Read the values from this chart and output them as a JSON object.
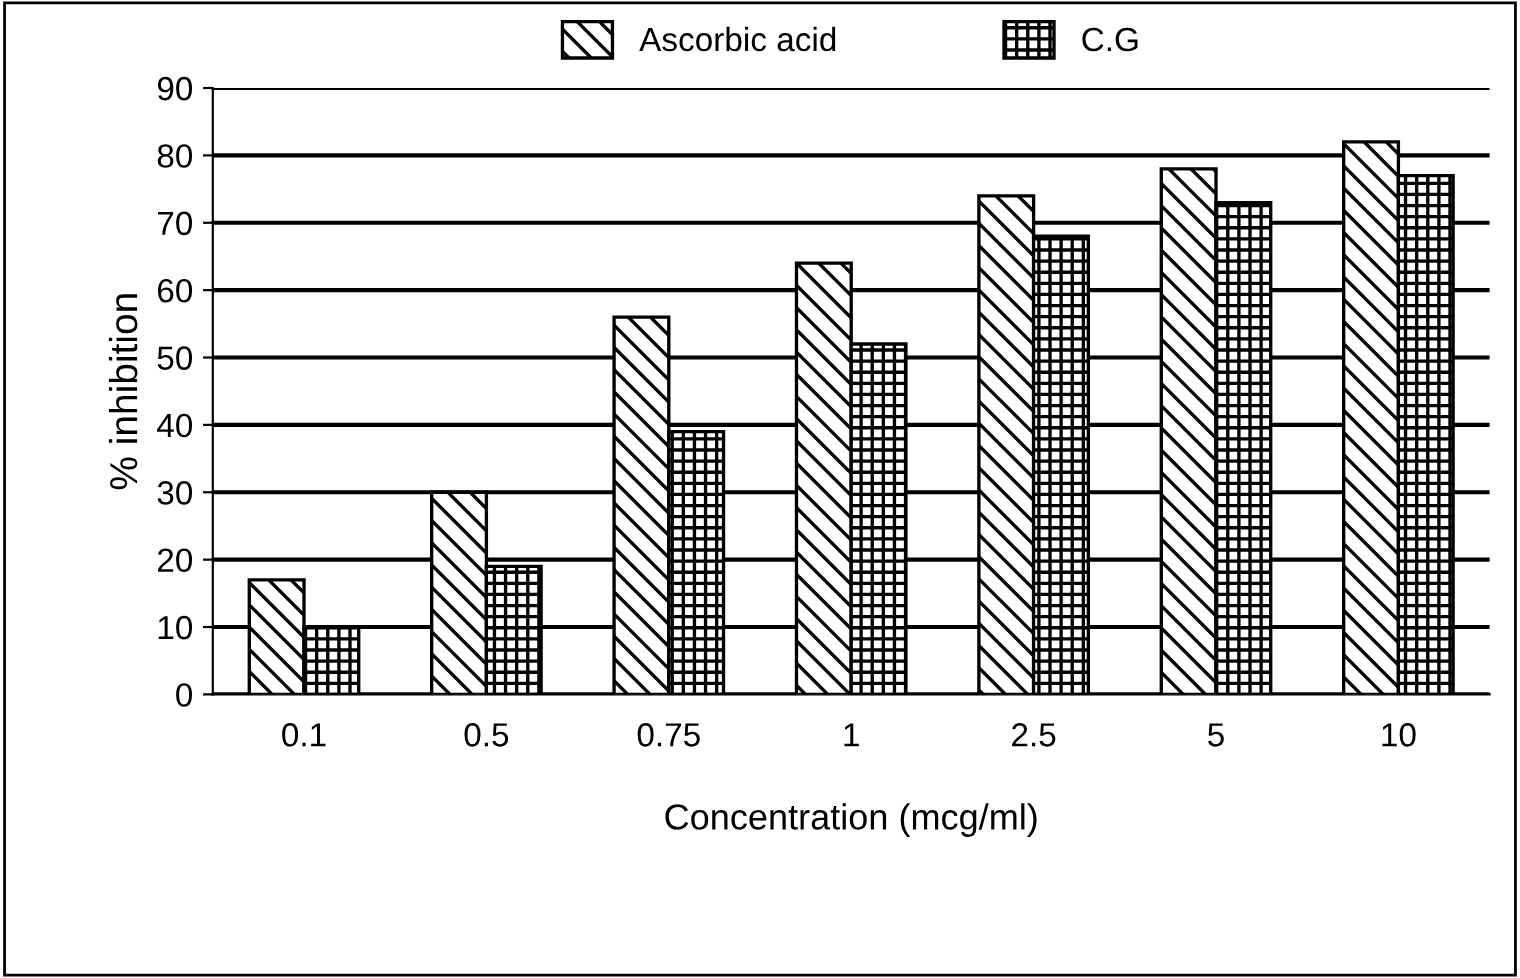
{
  "chart_data": {
    "type": "bar",
    "xlabel": "Concentration (mcg/ml)",
    "ylabel": "% inhibition",
    "categories": [
      "0.1",
      "0.5",
      "0.75",
      "1",
      "2.5",
      "5",
      "10"
    ],
    "series": [
      {
        "name": "Ascorbic acid",
        "color": "#000000",
        "values": [
          17,
          30,
          56,
          64,
          74,
          78,
          82
        ]
      },
      {
        "name": "C.G",
        "color": "#000000",
        "values": [
          10,
          19,
          39,
          52,
          68,
          73,
          77
        ]
      }
    ],
    "ylim": [
      0,
      90
    ],
    "yticks": [
      0,
      10,
      20,
      30,
      40,
      50,
      60,
      70,
      80,
      90
    ],
    "grid": "y",
    "legend": "top"
  }
}
